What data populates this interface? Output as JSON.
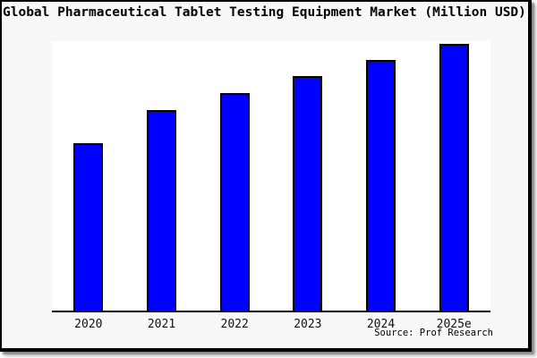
{
  "window": {
    "background_color": "#f8f8f8",
    "plot_background_color": "#ffffff",
    "frame_color": "#000000"
  },
  "chart_data": {
    "type": "bar",
    "title": "Global Pharmaceutical Tablet Testing Equipment Market (Million USD)",
    "categories": [
      "2020",
      "2021",
      "2022",
      "2023",
      "2024",
      "2025e"
    ],
    "values": [
      62.1,
      74.4,
      80.7,
      87.0,
      93.0,
      99.0
    ],
    "value_note": "y-axis has no tick labels; values estimated as percent of plot height",
    "xlabel": "",
    "ylabel": "",
    "ylim": [
      0,
      100
    ],
    "grid": false,
    "legend": false,
    "bar_color": "#0000ff",
    "bar_border_color": "#000000",
    "source": "Source: Prof Research"
  }
}
